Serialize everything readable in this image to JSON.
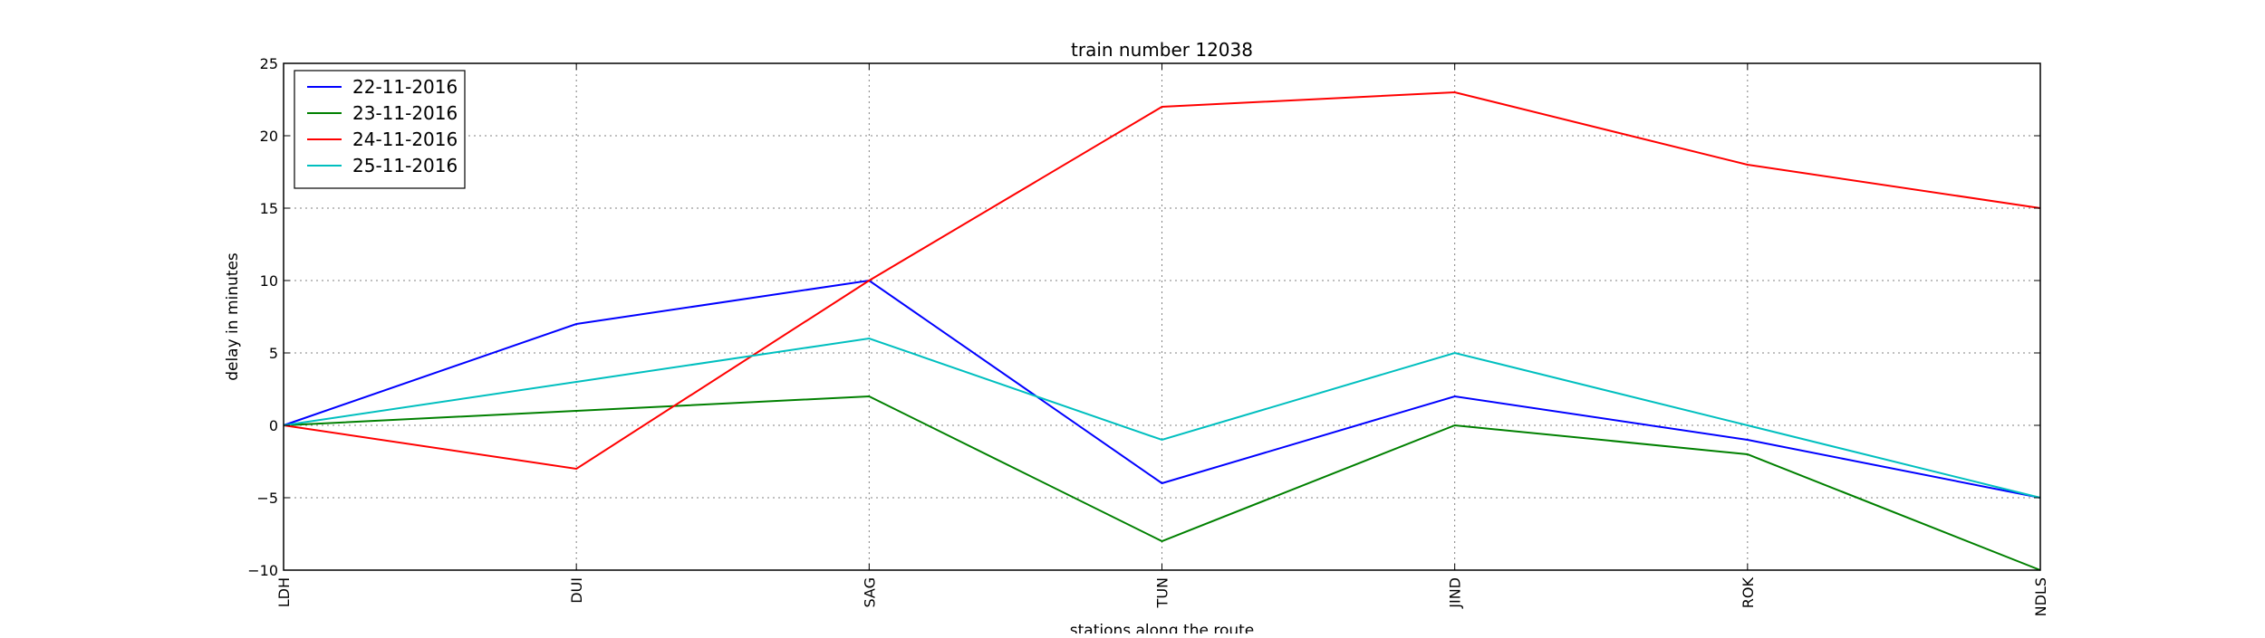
{
  "chart_data": {
    "type": "line",
    "title": "train number 12038",
    "xlabel": "stations along the route",
    "ylabel": "delay in minutes",
    "categories": [
      "LDH",
      "DUI",
      "SAG",
      "TUN",
      "JIND",
      "ROK",
      "NDLS"
    ],
    "ylim": [
      -10,
      25
    ],
    "yticks": [
      -10,
      -5,
      0,
      5,
      10,
      15,
      20,
      25
    ],
    "grid": true,
    "legend_position": "top-left",
    "series": [
      {
        "name": "22-11-2016",
        "color": "#0000ff",
        "values": [
          0,
          7,
          10,
          -4,
          2,
          -1,
          -5
        ]
      },
      {
        "name": "23-11-2016",
        "color": "#008000",
        "values": [
          0,
          1,
          2,
          -8,
          0,
          -2,
          -10
        ]
      },
      {
        "name": "24-11-2016",
        "color": "#ff0000",
        "values": [
          0,
          -3,
          10,
          22,
          23,
          18,
          15
        ]
      },
      {
        "name": "25-11-2016",
        "color": "#00bfbf",
        "values": [
          0,
          3,
          6,
          -1,
          5,
          0,
          -5
        ]
      }
    ]
  }
}
